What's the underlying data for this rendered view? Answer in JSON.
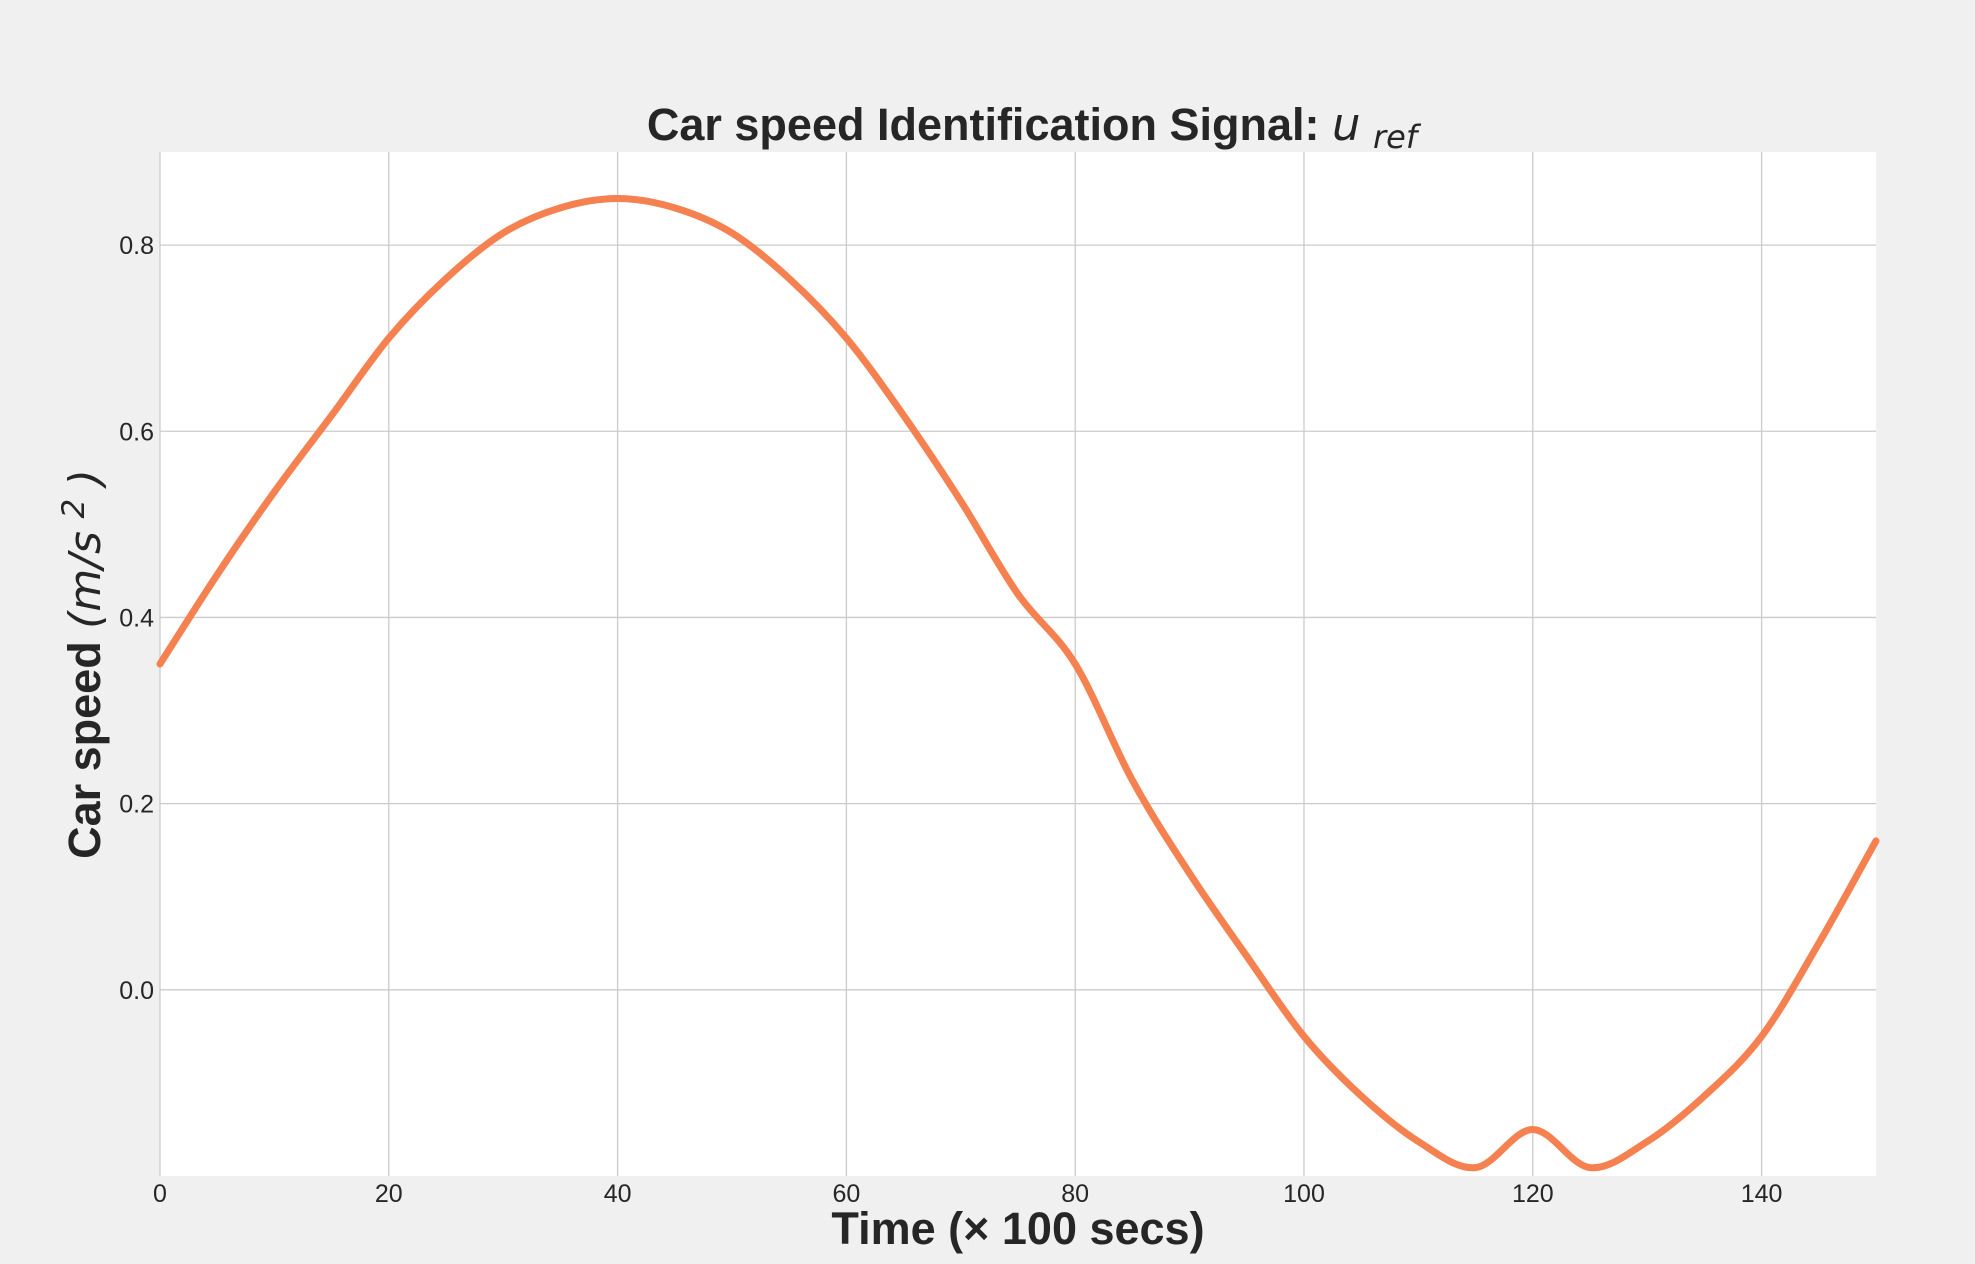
{
  "chart_data": {
    "type": "line",
    "title": {
      "text": "Car speed Identification Signal: ",
      "math_base": "u",
      "math_sub": "ref"
    },
    "xlabel": "Time (× 100 secs)",
    "ylabel": {
      "text": "Car speed ",
      "math_unit": "(m/s",
      "math_sup": "2",
      "math_close": ")"
    },
    "xlim": [
      0,
      150
    ],
    "ylim": [
      -0.2,
      0.9
    ],
    "xticks": [
      0,
      20,
      40,
      60,
      80,
      100,
      120,
      140
    ],
    "xtick_labels": [
      "0",
      "20",
      "40",
      "60",
      "80",
      "100",
      "120",
      "140"
    ],
    "yticks": [
      0.0,
      0.2,
      0.4,
      0.6,
      0.8
    ],
    "ytick_labels": [
      "0.0",
      "0.2",
      "0.4",
      "0.6",
      "0.8"
    ],
    "grid": true,
    "series": [
      {
        "color": "#f4814f",
        "x": [
          0,
          5,
          10,
          15,
          20,
          25,
          30,
          35,
          40,
          45,
          50,
          55,
          60,
          65,
          70,
          75,
          80,
          85,
          90,
          95,
          100,
          105,
          110,
          115,
          120,
          125,
          130,
          135,
          140,
          145,
          150
        ],
        "y": [
          0.35,
          0.446,
          0.535,
          0.617,
          0.7,
          0.764,
          0.813,
          0.84,
          0.85,
          0.84,
          0.813,
          0.764,
          0.7,
          0.617,
          0.525,
          0.425,
          0.35,
          0.225,
          0.125,
          0.036,
          -0.05,
          -0.114,
          -0.163,
          -0.191,
          -0.15,
          -0.191,
          -0.163,
          -0.114,
          -0.05,
          0.05,
          0.16
        ]
      }
    ]
  },
  "colors": {
    "background": "#f0f0f0",
    "plot_area": "#ffffff",
    "grid": "#cbcbcb",
    "text": "#262626",
    "series": "#f4814f"
  }
}
